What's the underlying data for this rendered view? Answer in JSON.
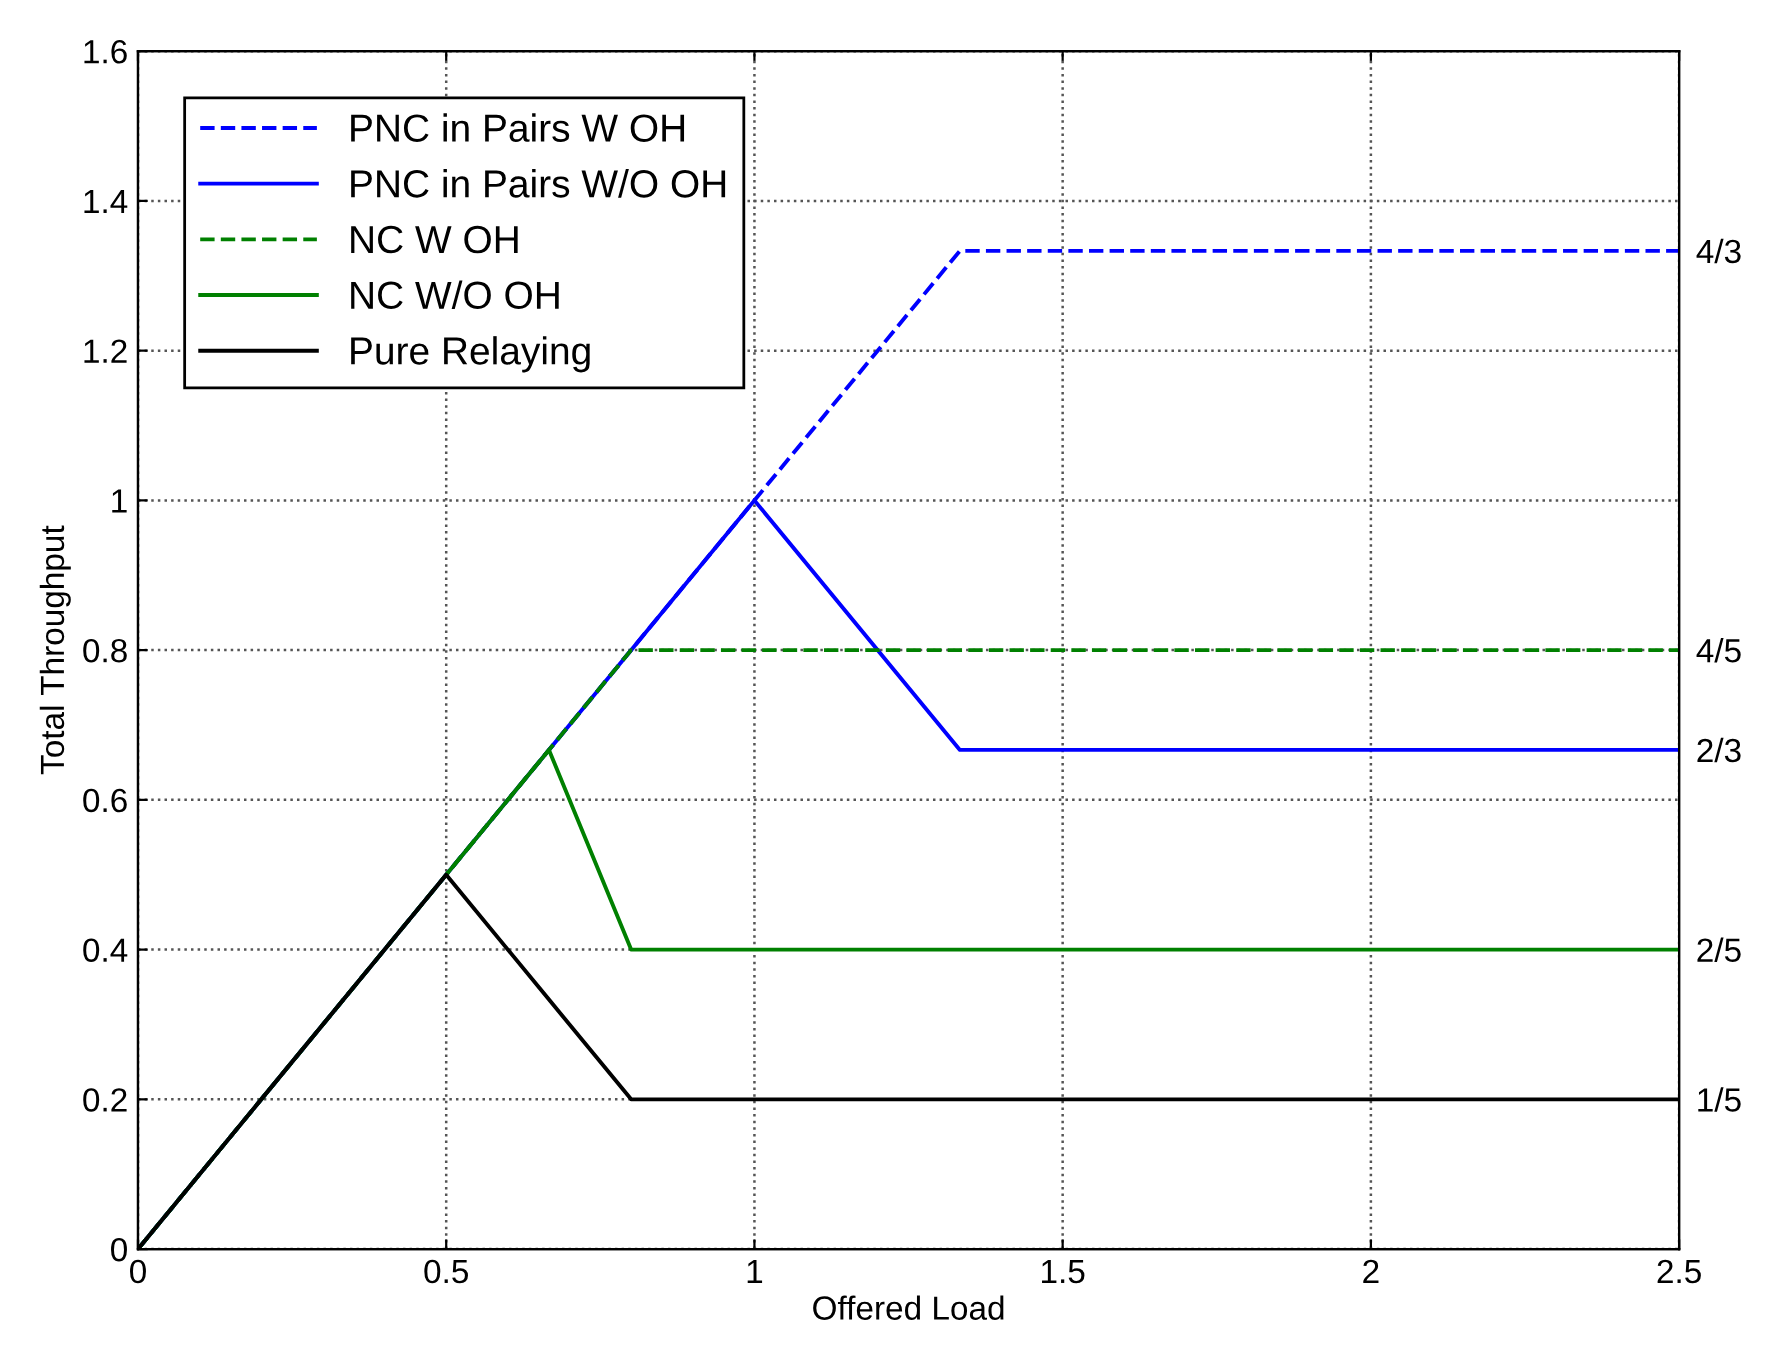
{
  "chart_data": {
    "type": "line",
    "xlabel": "Offered Load",
    "ylabel": "Total Throughput",
    "xlim": [
      0,
      2.5
    ],
    "xticks": [
      0,
      0.5,
      1,
      1.5,
      2,
      2.5
    ],
    "ylim": [
      0,
      1.6
    ],
    "yticks": [
      0,
      0.2,
      0.4,
      0.6,
      0.8,
      1,
      1.2,
      1.4,
      1.6
    ],
    "y2lim": [
      0,
      1.6
    ],
    "y2ticks": [
      {
        "value": 1.3333,
        "label": "4/3"
      },
      {
        "value": 0.8,
        "label": "4/5"
      },
      {
        "value": 0.6667,
        "label": "2/3"
      },
      {
        "value": 0.4,
        "label": "2/5"
      },
      {
        "value": 0.2,
        "label": "1/5"
      }
    ],
    "grid": true,
    "legend": "top left",
    "marker": "none",
    "series": [
      {
        "name": "PNC in Pairs W OH",
        "color": "#0000ff",
        "line_style": "dashed",
        "x": [
          0,
          1.3333,
          2.5
        ],
        "values": [
          0,
          1.3333,
          1.3333
        ]
      },
      {
        "name": "PNC in Pairs W/O OH",
        "color": "#0000ff",
        "line_style": "solid",
        "x": [
          0,
          1,
          1.3333,
          2.5
        ],
        "values": [
          0,
          1,
          0.6667,
          0.6667
        ]
      },
      {
        "name": "NC W OH",
        "color": "#008000",
        "line_style": "dashed",
        "x": [
          0,
          0.8,
          2.5
        ],
        "values": [
          0,
          0.8,
          0.8
        ]
      },
      {
        "name": "NC W/O OH",
        "color": "#008000",
        "line_style": "solid",
        "x": [
          0,
          0.6667,
          0.8,
          2.5
        ],
        "values": [
          0,
          0.6667,
          0.4,
          0.4
        ]
      },
      {
        "name": "Pure Relaying",
        "color": "#000000",
        "line_style": "solid",
        "x": [
          0,
          0.5,
          0.6667,
          0.8,
          2.5
        ],
        "values": [
          0,
          0.5,
          0.3333,
          0.2,
          0.2
        ]
      }
    ]
  }
}
